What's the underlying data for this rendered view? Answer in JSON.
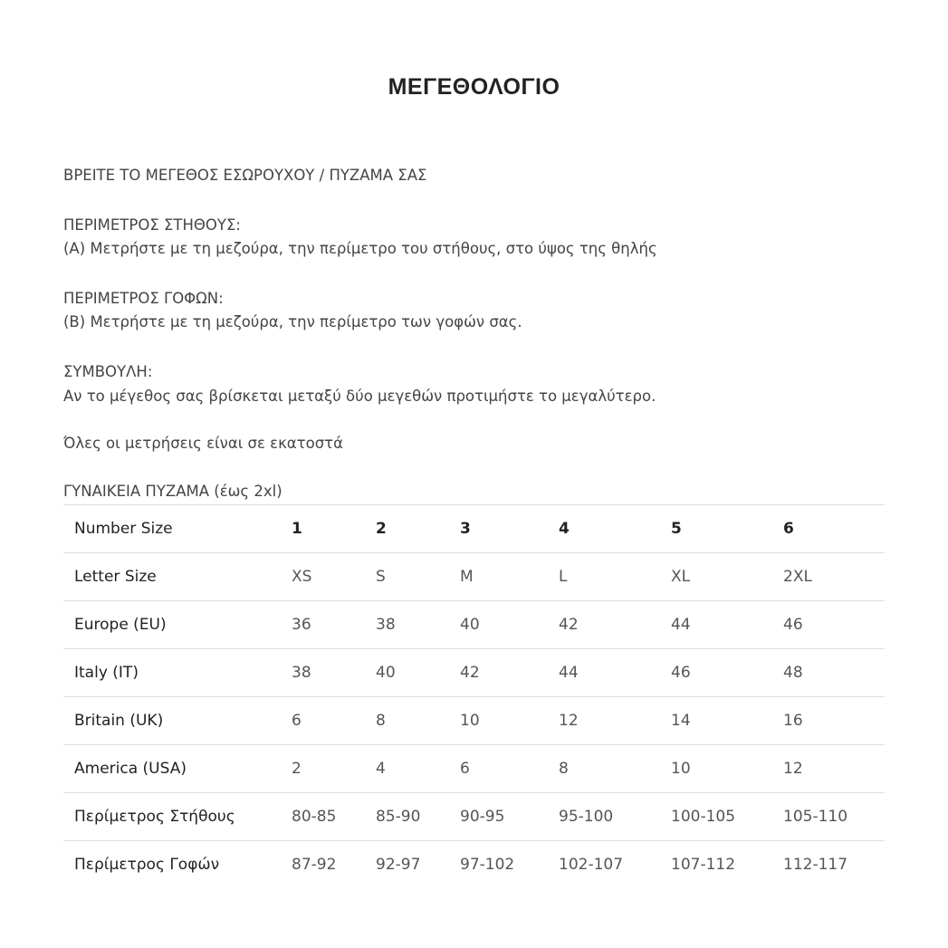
{
  "title": "ΜΕΓΕΘΟΛΟΓΙΟ",
  "intro": "ΒΡΕΙΤΕ ΤΟ ΜΕΓΕΘΟΣ ΕΣΩΡΟΥΧΟΥ / ΠΥΖΑΜΑ ΣΑΣ",
  "chest_heading": "ΠΕΡΙΜΕΤΡΟΣ ΣΤΗΘΟΥΣ:",
  "chest_text": "(A) Μετρήστε με τη μεζούρα, την περίμετρο του στήθους, στο ύψος της θηλής",
  "hips_heading": "ΠΕΡΙΜΕΤΡΟΣ ΓΟΦΩΝ:",
  "hips_text": "(B) Μετρήστε με τη μεζούρα, την περίμετρο των γοφών σας.",
  "tip_heading": "ΣΥΜΒΟΥΛΗ:",
  "tip_text": "Αν το μέγεθος σας βρίσκεται μεταξύ δύο μεγεθών προτιμήστε το μεγαλύτερο.",
  "units_note": "Όλες οι μετρήσεις είναι σε εκατοστά",
  "table_caption": "ΓΥΝΑΙΚΕΙΑ ΠΥΖΑΜΑ (έως 2xl)",
  "table": {
    "rows": [
      {
        "label": "Number Size",
        "values": [
          "1",
          "2",
          "3",
          "4",
          "5",
          "6"
        ]
      },
      {
        "label": "Letter Size",
        "values": [
          "XS",
          "S",
          "M",
          "L",
          "XL",
          "2XL"
        ]
      },
      {
        "label": "Europe (EU)",
        "values": [
          "36",
          "38",
          "40",
          "42",
          "44",
          "46"
        ]
      },
      {
        "label": "Italy (IT)",
        "values": [
          "38",
          "40",
          "42",
          "44",
          "46",
          "48"
        ]
      },
      {
        "label": "Britain (UK)",
        "values": [
          "6",
          "8",
          "10",
          "12",
          "14",
          "16"
        ]
      },
      {
        "label": "America (USA)",
        "values": [
          "2",
          "4",
          "6",
          "8",
          "10",
          "12"
        ]
      },
      {
        "label": "Περίμετρος Στήθους",
        "values": [
          "80-85",
          "85-90",
          "90-95",
          "95-100",
          "100-105",
          "105-110"
        ]
      },
      {
        "label": "Περίμετρος Γοφών",
        "values": [
          "87-92",
          "92-97",
          "97-102",
          "102-107",
          "107-112",
          "112-117"
        ]
      }
    ]
  }
}
